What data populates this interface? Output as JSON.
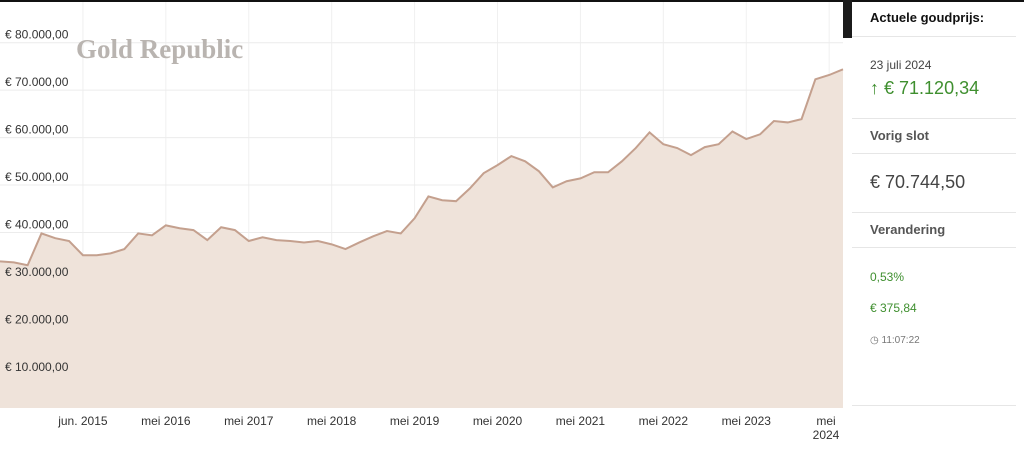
{
  "chart_data": {
    "type": "area",
    "watermark": "Gold Republic",
    "categories": [
      null,
      null,
      null,
      null,
      null,
      null,
      "jun. 2015",
      null,
      null,
      null,
      null,
      null,
      "mei 2016",
      null,
      null,
      null,
      null,
      null,
      "mei 2017",
      null,
      null,
      null,
      null,
      null,
      "mei 2018",
      null,
      null,
      null,
      null,
      null,
      "mei 2019",
      null,
      null,
      null,
      null,
      null,
      "mei 2020",
      null,
      null,
      null,
      null,
      null,
      "mei 2021",
      null,
      null,
      null,
      null,
      null,
      "mei 2022",
      null,
      null,
      null,
      null,
      null,
      "mei 2023",
      null,
      null,
      null,
      null,
      null,
      "mei 2024",
      null
    ],
    "values": [
      33900,
      33700,
      33100,
      39800,
      38800,
      38200,
      35200,
      35200,
      35600,
      36500,
      39800,
      39400,
      41500,
      40900,
      40500,
      38400,
      41100,
      40500,
      38200,
      39000,
      38400,
      38200,
      37900,
      38200,
      37500,
      36500,
      37900,
      39200,
      40300,
      39800,
      43000,
      47600,
      46800,
      46600,
      49300,
      52500,
      54200,
      56100,
      55000,
      52900,
      49500,
      50800,
      51400,
      52700,
      52700,
      55000,
      57800,
      61100,
      58600,
      57800,
      56300,
      58000,
      58600,
      61300,
      59700,
      60700,
      63500,
      63200,
      63900,
      72300,
      73200,
      74400
    ],
    "color": "#c4a08e",
    "fill": "#efe3da",
    "ylim": [
      3000,
      83000
    ],
    "yticks": [
      {
        "value": 10000,
        "label": "€ 10.000,00"
      },
      {
        "value": 20000,
        "label": "€ 20.000,00"
      },
      {
        "value": 30000,
        "label": "€ 30.000,00"
      },
      {
        "value": 40000,
        "label": "€ 40.000,00"
      },
      {
        "value": 50000,
        "label": "€ 50.000,00"
      },
      {
        "value": 60000,
        "label": "€ 60.000,00"
      },
      {
        "value": 70000,
        "label": "€ 70.000,00"
      },
      {
        "value": 80000,
        "label": "€ 80.000,00"
      }
    ],
    "grid": true
  },
  "panel": {
    "title": "Actuele goudprijs:",
    "date": "23 juli 2024",
    "price": "€ 71.120,34",
    "previous_label": "Vorig slot",
    "previous": "€ 70.744,50",
    "change_label": "Verandering",
    "change_percent": "0,53%",
    "change_amount": "€ 375,84",
    "time": "11:07:22"
  }
}
